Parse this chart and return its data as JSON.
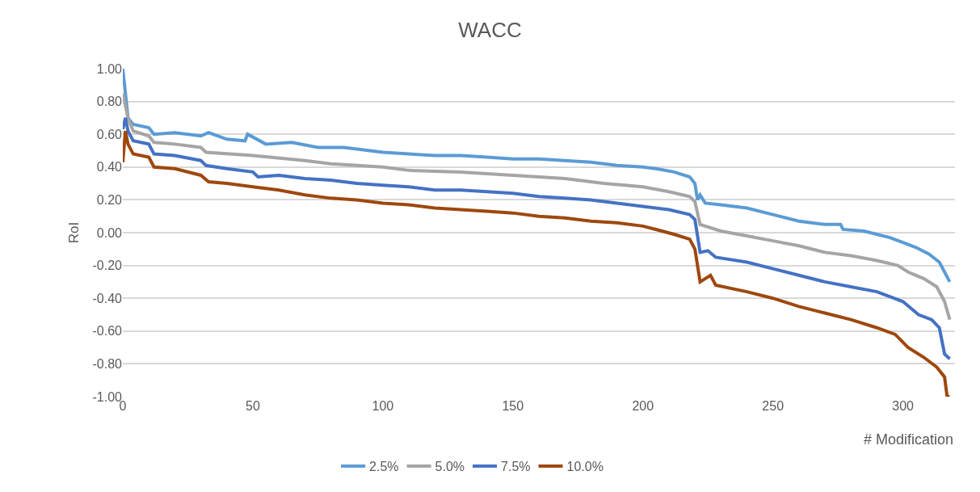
{
  "chart_data": {
    "type": "line",
    "title": "WACC",
    "xlabel": "# Modification",
    "ylabel": "RoI",
    "xlim": [
      0,
      320
    ],
    "xticks": [
      0,
      50,
      100,
      150,
      200,
      250,
      300
    ],
    "ylim": [
      -1,
      1
    ],
    "yticks": [
      {
        "value": 1,
        "label": "1.00"
      },
      {
        "value": 0.8,
        "label": "0.80"
      },
      {
        "value": 0.6,
        "label": "0.60"
      },
      {
        "value": 0.4,
        "label": "0.40"
      },
      {
        "value": 0.2,
        "label": "0.20"
      },
      {
        "value": 0,
        "label": "0.00"
      },
      {
        "value": -0.2,
        "label": "-0.20"
      },
      {
        "value": -0.4,
        "label": "-0.40"
      },
      {
        "value": -0.6,
        "label": "-0.60"
      },
      {
        "value": -0.8,
        "label": "-0.80"
      },
      {
        "value": -1,
        "label": "-1.00"
      }
    ],
    "grid": "y",
    "legend": "bottom",
    "marker": "none",
    "line_style": "solid",
    "series": [
      {
        "name": "2.5%",
        "color": "#5b9bd5",
        "x": [
          0,
          2,
          4,
          10,
          12,
          20,
          30,
          33,
          40,
          47,
          48,
          55,
          65,
          75,
          85,
          95,
          100,
          110,
          120,
          130,
          140,
          150,
          160,
          170,
          180,
          190,
          200,
          205,
          212,
          218,
          220,
          221,
          222,
          224,
          230,
          240,
          250,
          260,
          270,
          276,
          277,
          285,
          295,
          300,
          305,
          310,
          314,
          318
        ],
        "values": [
          1.0,
          0.7,
          0.66,
          0.64,
          0.6,
          0.61,
          0.59,
          0.61,
          0.57,
          0.56,
          0.6,
          0.54,
          0.55,
          0.52,
          0.52,
          0.5,
          0.49,
          0.48,
          0.47,
          0.47,
          0.46,
          0.45,
          0.45,
          0.44,
          0.43,
          0.41,
          0.4,
          0.39,
          0.37,
          0.34,
          0.3,
          0.2,
          0.23,
          0.18,
          0.17,
          0.15,
          0.11,
          0.07,
          0.05,
          0.05,
          0.02,
          0.01,
          -0.03,
          -0.06,
          -0.09,
          -0.13,
          -0.18,
          -0.3
        ]
      },
      {
        "name": "5.0%",
        "color": "#a5a5a5",
        "x": [
          0,
          2,
          4,
          10,
          12,
          20,
          30,
          32,
          50,
          70,
          80,
          100,
          110,
          130,
          150,
          170,
          185,
          200,
          210,
          218,
          220,
          222,
          230,
          240,
          250,
          260,
          270,
          280,
          290,
          298,
          302,
          308,
          313,
          316,
          318
        ],
        "values": [
          0.85,
          0.7,
          0.62,
          0.59,
          0.55,
          0.54,
          0.52,
          0.49,
          0.47,
          0.44,
          0.42,
          0.4,
          0.38,
          0.37,
          0.35,
          0.33,
          0.3,
          0.28,
          0.25,
          0.22,
          0.19,
          0.05,
          0.01,
          -0.02,
          -0.05,
          -0.08,
          -0.12,
          -0.14,
          -0.17,
          -0.2,
          -0.24,
          -0.28,
          -0.33,
          -0.42,
          -0.53
        ]
      },
      {
        "name": "7.5%",
        "color": "#4472c4",
        "x": [
          0,
          1,
          2,
          4,
          10,
          12,
          20,
          30,
          32,
          40,
          50,
          52,
          60,
          70,
          80,
          90,
          100,
          110,
          120,
          130,
          140,
          150,
          160,
          170,
          180,
          190,
          200,
          210,
          218,
          220,
          222,
          225,
          228,
          240,
          250,
          260,
          270,
          280,
          290,
          300,
          306,
          311,
          314,
          316,
          318
        ],
        "values": [
          0.63,
          0.7,
          0.62,
          0.56,
          0.54,
          0.48,
          0.47,
          0.44,
          0.41,
          0.39,
          0.37,
          0.34,
          0.35,
          0.33,
          0.32,
          0.3,
          0.29,
          0.28,
          0.26,
          0.26,
          0.25,
          0.24,
          0.22,
          0.21,
          0.2,
          0.18,
          0.16,
          0.14,
          0.11,
          0.08,
          -0.12,
          -0.11,
          -0.15,
          -0.18,
          -0.22,
          -0.26,
          -0.3,
          -0.33,
          -0.36,
          -0.42,
          -0.5,
          -0.53,
          -0.58,
          -0.74,
          -0.77
        ]
      },
      {
        "name": "10.0%",
        "color": "#9e480e",
        "x": [
          0,
          1,
          2,
          4,
          10,
          12,
          20,
          30,
          33,
          40,
          50,
          60,
          70,
          80,
          90,
          100,
          110,
          120,
          130,
          140,
          150,
          160,
          170,
          180,
          190,
          200,
          205,
          212,
          218,
          220,
          222,
          224,
          226,
          228,
          240,
          250,
          260,
          270,
          280,
          290,
          297,
          302,
          308,
          313,
          316,
          317,
          318
        ],
        "values": [
          0.43,
          0.62,
          0.54,
          0.48,
          0.46,
          0.4,
          0.39,
          0.35,
          0.31,
          0.3,
          0.28,
          0.26,
          0.23,
          0.21,
          0.2,
          0.18,
          0.17,
          0.15,
          0.14,
          0.13,
          0.12,
          0.1,
          0.09,
          0.07,
          0.06,
          0.04,
          0.02,
          -0.01,
          -0.04,
          -0.1,
          -0.3,
          -0.28,
          -0.26,
          -0.32,
          -0.36,
          -0.4,
          -0.45,
          -0.49,
          -0.53,
          -0.58,
          -0.62,
          -0.7,
          -0.76,
          -0.82,
          -0.88,
          -1.0,
          -1.0
        ]
      }
    ]
  }
}
